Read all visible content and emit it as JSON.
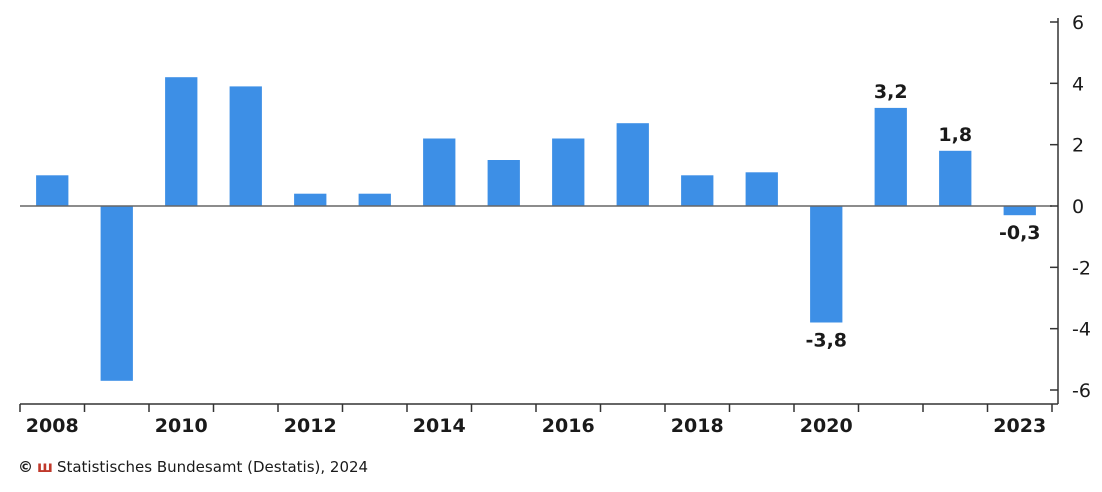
{
  "chart_data": {
    "type": "bar",
    "categories": [
      "2008",
      "2009",
      "2010",
      "2011",
      "2012",
      "2013",
      "2014",
      "2015",
      "2016",
      "2017",
      "2018",
      "2019",
      "2020",
      "2021",
      "2022",
      "2023"
    ],
    "values": [
      1.0,
      -5.7,
      4.2,
      3.9,
      0.4,
      0.4,
      2.2,
      1.5,
      2.2,
      2.7,
      1.0,
      1.1,
      -3.8,
      3.2,
      1.8,
      -0.3
    ],
    "x_tick_labels": [
      {
        "category": "2008",
        "label": "2008"
      },
      {
        "category": "2010",
        "label": "2010"
      },
      {
        "category": "2012",
        "label": "2012"
      },
      {
        "category": "2014",
        "label": "2014"
      },
      {
        "category": "2016",
        "label": "2016"
      },
      {
        "category": "2018",
        "label": "2018"
      },
      {
        "category": "2020",
        "label": "2020"
      },
      {
        "category": "2023",
        "label": "2023"
      }
    ],
    "y_ticks": [
      "6",
      "4",
      "2",
      "0",
      "-2",
      "-4",
      "-6"
    ],
    "y_tick_values": [
      6,
      4,
      2,
      0,
      -2,
      -4,
      -6
    ],
    "ylim": [
      -6,
      6
    ],
    "y_axis_position": "right",
    "data_labels": [
      {
        "category": "2020",
        "text": "-3,8"
      },
      {
        "category": "2021",
        "text": "3,2"
      },
      {
        "category": "2022",
        "text": "1,8"
      },
      {
        "category": "2023",
        "text": "-0,3"
      }
    ],
    "bar_color": "#3d8fe6",
    "grid": false,
    "title": "",
    "xlabel": "",
    "ylabel": ""
  },
  "source": {
    "copyright": "©",
    "logo_glyph": "ш",
    "text": "Statistisches Bundesamt (Destatis), 2024"
  }
}
